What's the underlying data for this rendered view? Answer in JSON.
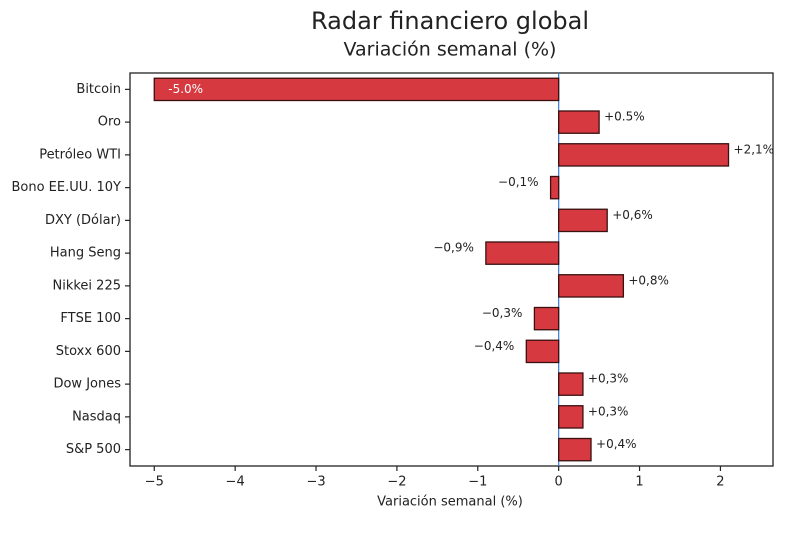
{
  "chart_data": {
    "type": "barh",
    "title": "Radar financiero global",
    "subtitle": "Variación semanal (%)",
    "x_label": "Variación semanal (%)",
    "categories": [
      "Bitcoin",
      "Oro",
      "Petróleo WTI",
      "Bono EE.UU. 10Y",
      "DXY (Dólar)",
      "Hang Seng",
      "Nikkei 225",
      "FTSE 100",
      "Stoxx 600",
      "Dow Jones",
      "Nasdaq",
      "S&P 500"
    ],
    "values": [
      -5.0,
      0.5,
      2.1,
      -0.1,
      0.6,
      -0.9,
      0.8,
      -0.3,
      -0.4,
      0.3,
      0.3,
      0.4
    ],
    "value_labels": [
      "-5.0%",
      "+0.5%",
      "+2,1%",
      "−0,1%",
      "+0,6%",
      "−0,9%",
      "+0,8%",
      "−0,3%",
      "−0,4%",
      "+0,3%",
      "+0,3%",
      "+0,4%"
    ],
    "color": "#d63a40",
    "xlim": [
      -5.3,
      2.65
    ],
    "xticks": [
      {
        "value": -5,
        "label": "−5"
      },
      {
        "value": -4,
        "label": "−4"
      },
      {
        "value": -3,
        "label": "−3"
      },
      {
        "value": -2,
        "label": "−2"
      },
      {
        "value": -1,
        "label": "−1"
      },
      0,
      1,
      2
    ]
  }
}
